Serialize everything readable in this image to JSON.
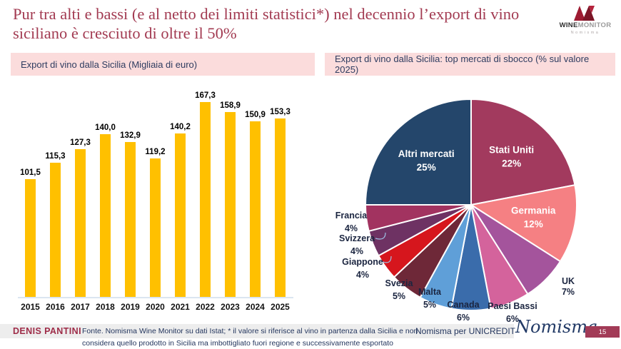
{
  "title": "Pur tra alti e bassi (e al netto dei limiti statistici*) nel decennio l’export di vino siciliano è cresciuto di oltre il 50%",
  "brand": {
    "name_bold": "WINE",
    "name_light": "MONITOR",
    "subtext": "Nomisma"
  },
  "panels": {
    "left": {
      "header": "Export di vino dalla Sicilia (Migliaia di euro)"
    },
    "right": {
      "header": "Export di vino dalla Sicilia: top mercati di sbocco (% sul valore 2025)"
    }
  },
  "chart_data": [
    {
      "type": "bar",
      "title": "Export di vino dalla Sicilia (Migliaia di euro)",
      "categories": [
        "2015",
        "2016",
        "2017",
        "2018",
        "2019",
        "2020",
        "2021",
        "2022",
        "2023",
        "2024",
        "2025"
      ],
      "values": [
        101.5,
        115.3,
        127.3,
        140.0,
        132.9,
        119.2,
        140.2,
        167.3,
        158.9,
        150.9,
        153.3
      ],
      "value_label_decimal_separator": ",",
      "bar_color": "#ffc000",
      "xlabel": "",
      "ylabel": "",
      "ylim": [
        0,
        180
      ],
      "grid": false,
      "legend": "none"
    },
    {
      "type": "pie",
      "title": "Export di vino dalla Sicilia: top mercati di sbocco (% sul valore 2025)",
      "start_angle_deg": 0,
      "direction": "clockwise",
      "slices": [
        {
          "label": "Stati Uniti",
          "value": 22,
          "color": "#a23a5e"
        },
        {
          "label": "Germania",
          "value": 12,
          "color": "#f58083"
        },
        {
          "label": "UK",
          "value": 7,
          "color": "#a4549c"
        },
        {
          "label": "Paesi Bassi",
          "value": 6,
          "color": "#d4639c"
        },
        {
          "label": "Canada",
          "value": 6,
          "color": "#3a6cab"
        },
        {
          "label": "Malta",
          "value": 5,
          "color": "#5f9fd8"
        },
        {
          "label": "Svezia",
          "value": 5,
          "color": "#6e2838"
        },
        {
          "label": "Giappone",
          "value": 4,
          "color": "#d6161d"
        },
        {
          "label": "Svizzera",
          "value": 4,
          "color": "#6e3263"
        },
        {
          "label": "Francia",
          "value": 4,
          "color": "#a23360"
        },
        {
          "label": "Altri mercati",
          "value": 25,
          "color": "#24466b"
        }
      ]
    }
  ],
  "footer": {
    "author": "DENIS PANTINI",
    "source_line1": "Fonte. Nomisma Wine Monitor su dati Istat; * il valore si riferisce al vino in partenza dalla Sicilia e non",
    "source_line2": "considera quello prodotto in Sicilia ma imbottigliato fuori regione e successivamente esportato",
    "client": "Nomisma per UNICREDIT",
    "script_logo": "Nomisma",
    "page_number": "15"
  },
  "colors": {
    "title_red": "#a23a51",
    "panel_header_bg": "#fbdcdc",
    "panel_header_text": "#2e3c60",
    "bar_gold": "#ffc000",
    "footer_navy": "#24365e",
    "author_red": "#9e2c48",
    "page_badge_bg": "#a23b57",
    "brand_red": "#9e1b32"
  }
}
